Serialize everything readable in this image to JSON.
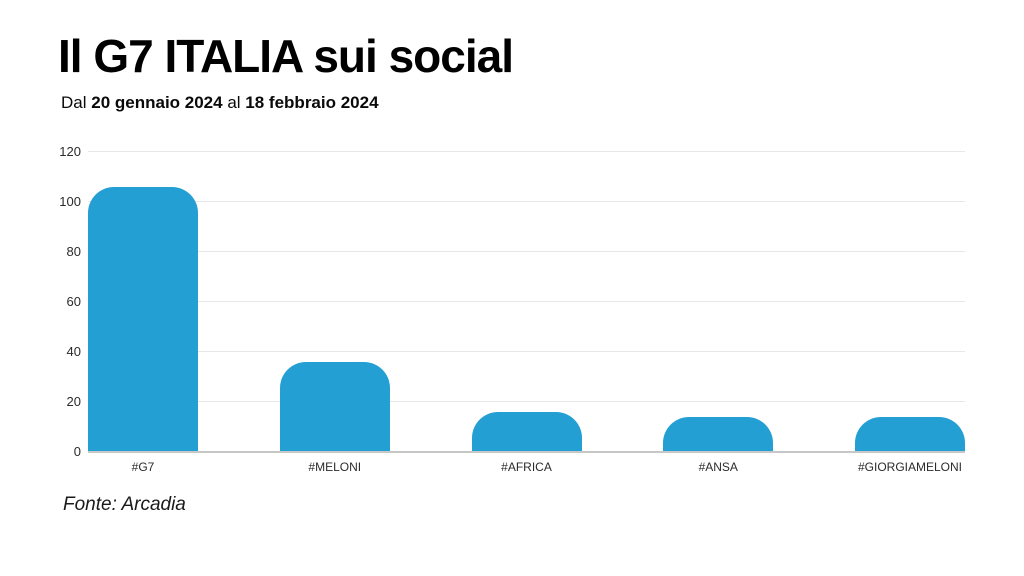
{
  "header": {
    "title": "Il G7 ITALIA sui social",
    "subtitle_prefix": "Dal",
    "date_from": "20 gennaio 2024",
    "subtitle_connector": "al",
    "date_to": "18 febbraio 2024"
  },
  "chart_data": {
    "type": "bar",
    "title": "Il G7 ITALIA sui social",
    "subtitle": "Dal 20 gennaio 2024 al 18 febbraio 2024",
    "categories": [
      "#G7",
      "#MELONI",
      "#AFRICA",
      "#ANSA",
      "#GIORGIAMELONI"
    ],
    "values": [
      106,
      36,
      16,
      14,
      14
    ],
    "xlabel": "",
    "ylabel": "",
    "ylim": [
      0,
      120
    ],
    "yticks": [
      0,
      20,
      40,
      60,
      80,
      100,
      120
    ],
    "grid": true,
    "legend": false,
    "bar_color": "#249FD3",
    "gridline_color": "#e7e7e7",
    "baseline_color": "#c7c7c7",
    "source": "Fonte: Arcadia"
  },
  "footer": {
    "source": "Fonte: Arcadia"
  }
}
